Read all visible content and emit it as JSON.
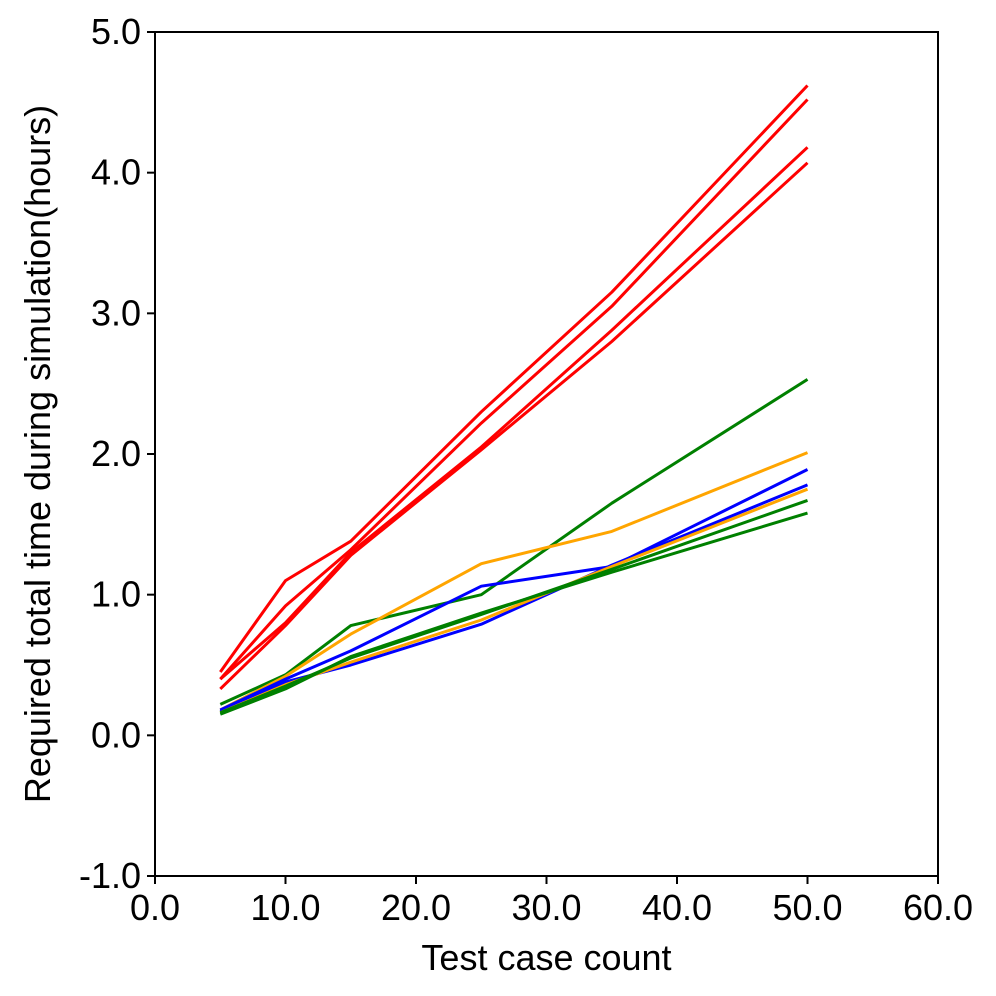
{
  "chart_data": {
    "type": "line",
    "xlabel": "Test case count",
    "ylabel": "Required total time during simulation(hours)",
    "xlim": [
      0,
      60
    ],
    "ylim": [
      -1,
      5
    ],
    "xticks": [
      0,
      10,
      20,
      30,
      40,
      50,
      60
    ],
    "yticks": [
      -1,
      0,
      1,
      2,
      3,
      4,
      5
    ],
    "xtick_labels": [
      "0.0",
      "10.0",
      "20.0",
      "30.0",
      "40.0",
      "50.0",
      "60.0"
    ],
    "ytick_labels": [
      "-1.0",
      "0.0",
      "1.0",
      "2.0",
      "3.0",
      "4.0",
      "5.0"
    ],
    "grid": false,
    "x": [
      5,
      10,
      15,
      25,
      35,
      50
    ],
    "series": [
      {
        "color": "#ff0000",
        "values": [
          0.45,
          1.1,
          1.38,
          2.3,
          3.15,
          4.62
        ]
      },
      {
        "color": "#ff0000",
        "values": [
          0.4,
          0.92,
          1.32,
          2.22,
          3.05,
          4.52
        ]
      },
      {
        "color": "#ff0000",
        "values": [
          0.4,
          0.8,
          1.3,
          2.05,
          2.88,
          4.18
        ]
      },
      {
        "color": "#ff0000",
        "values": [
          0.33,
          0.78,
          1.28,
          2.03,
          2.8,
          4.07
        ]
      },
      {
        "color": "#008000",
        "values": [
          0.22,
          0.43,
          0.78,
          1.0,
          1.65,
          2.53
        ]
      },
      {
        "color": "#ffa500",
        "values": [
          0.18,
          0.42,
          0.72,
          1.22,
          1.45,
          2.01
        ]
      },
      {
        "color": "#0000ff",
        "values": [
          0.18,
          0.4,
          0.6,
          1.06,
          1.2,
          1.89
        ]
      },
      {
        "color": "#0000ff",
        "values": [
          0.17,
          0.38,
          0.5,
          0.79,
          1.21,
          1.78
        ]
      },
      {
        "color": "#ffa500",
        "values": [
          0.16,
          0.36,
          0.52,
          0.82,
          1.2,
          1.75
        ]
      },
      {
        "color": "#008000",
        "values": [
          0.16,
          0.35,
          0.55,
          0.86,
          1.18,
          1.67
        ]
      },
      {
        "color": "#008000",
        "values": [
          0.15,
          0.33,
          0.56,
          0.87,
          1.16,
          1.58
        ]
      }
    ]
  }
}
